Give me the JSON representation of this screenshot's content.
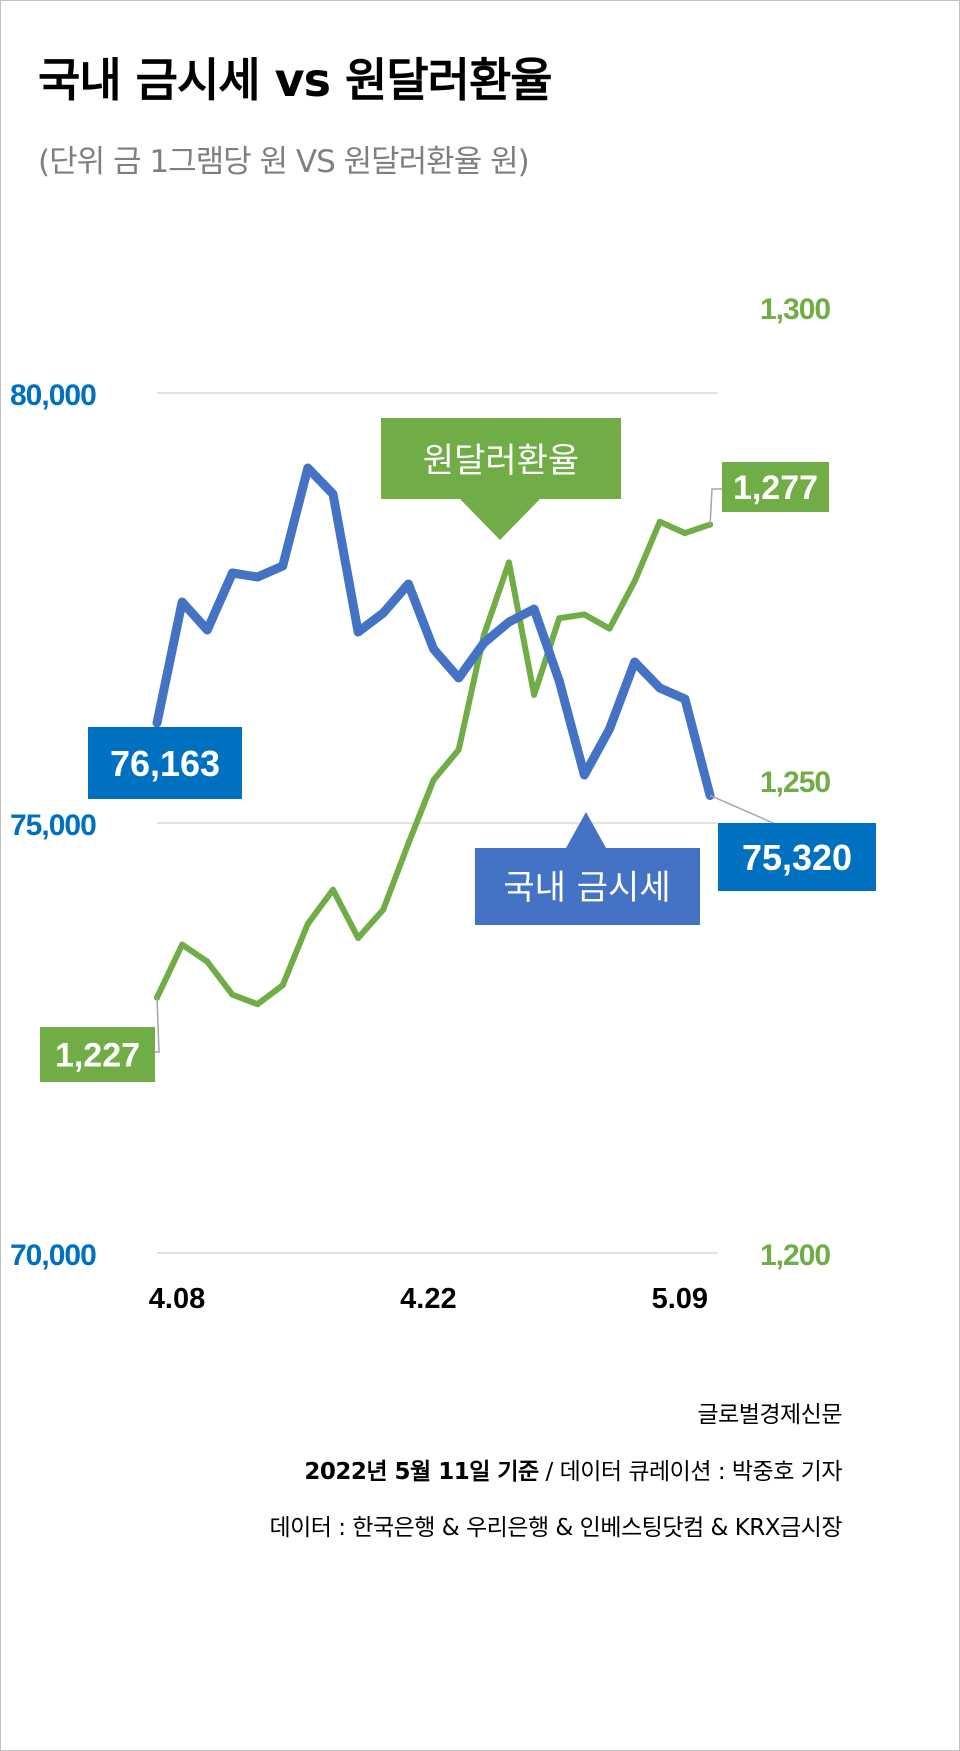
{
  "title": "국내 금시세 vs 원달러환율",
  "subtitle": "(단위 금 1그램당 원 VS 원달러환율 원)",
  "colors": {
    "gold_line": "#4472C4",
    "gold_axis": "#0070C0",
    "gold_label_box": "#0070C0",
    "fx_line": "#70AD47",
    "fx_axis": "#70AD47",
    "grid": "#D9D9D9"
  },
  "chart_data": {
    "type": "line",
    "title": "국내 금시세 vs 원달러환율",
    "subtitle": "(단위 금 1그램당 원 VS 원달러환율 원)",
    "x_ticks": [
      {
        "index": 0,
        "label": "4.08"
      },
      {
        "index": 10,
        "label": "4.22"
      },
      {
        "index": 20,
        "label": "5.09"
      }
    ],
    "y_left": {
      "range": [
        70000,
        80000
      ],
      "ticks": [
        {
          "value": 70000,
          "label": "70,000"
        },
        {
          "value": 75000,
          "label": "75,000"
        },
        {
          "value": 80000,
          "label": "80,000"
        }
      ]
    },
    "y_right": {
      "range": [
        1200,
        1300
      ],
      "ticks": [
        {
          "value": 1200,
          "label": "1,200"
        },
        {
          "value": 1250,
          "label": "1,250"
        },
        {
          "value": 1300,
          "label": "1,300"
        }
      ]
    },
    "grid": true,
    "series": [
      {
        "name": "국내 금시세",
        "axis": "left",
        "values": [
          76163,
          77570,
          77244,
          77907,
          77860,
          77988,
          79128,
          78826,
          77221,
          77442,
          77779,
          77023,
          76686,
          77093,
          77337,
          77488,
          76651,
          75558,
          76093,
          76872,
          76570,
          76442,
          75320
        ],
        "labels": {
          "first": "76,163",
          "last": "75,320"
        }
      },
      {
        "name": "원달러환율",
        "axis": "right",
        "values": [
          1227,
          1232.6,
          1230.8,
          1227.3,
          1226.3,
          1228.3,
          1234.8,
          1238.4,
          1233.3,
          1236.3,
          1243.3,
          1250,
          1253.2,
          1265.3,
          1273.0,
          1259.0,
          1267.1,
          1267.5,
          1266.0,
          1271.0,
          1277.3,
          1276.1,
          1277
        ],
        "labels": {
          "first": "1,227",
          "last": "1,277"
        }
      }
    ]
  },
  "footer": {
    "source": "글로벌경제신문",
    "basis_bold": "2022년 5월 11일 기준",
    "curation": " / 데이터 큐레이션 : 박중호 기자",
    "data_sources": "데이터 : 한국은행 & 우리은행 & 인베스팅닷컴 & KRX금시장"
  }
}
